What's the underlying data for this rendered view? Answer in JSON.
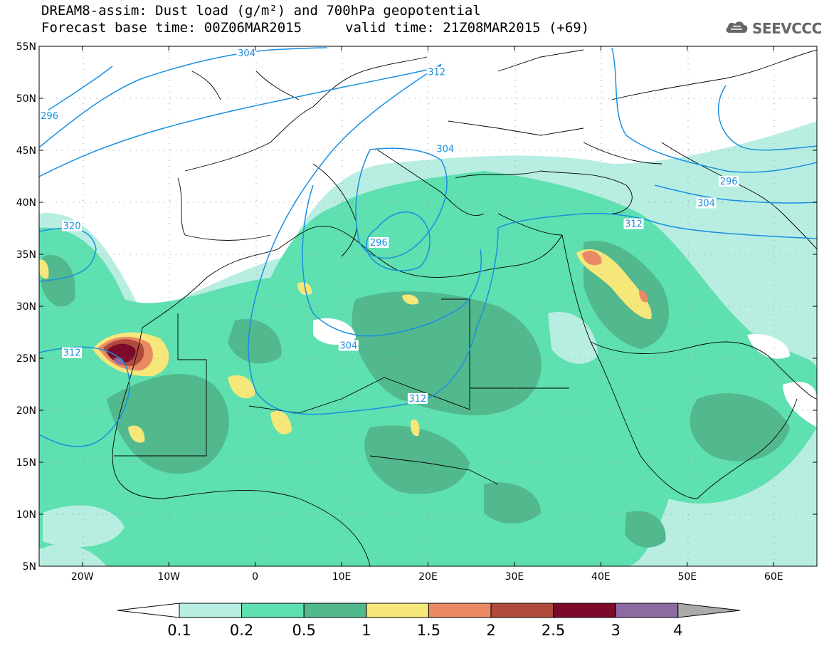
{
  "title": {
    "line1": "DREAM8-assim: Dust load (g/m²) and 700hPa geopotential",
    "line2_left": "Forecast base time: 00Z06MAR2015",
    "line2_right": "valid time: 21Z08MAR2015 (+69)"
  },
  "logo": {
    "text": "SEEVCCC",
    "icon": "cloud-icon"
  },
  "map": {
    "lat_labels": [
      "55N",
      "50N",
      "45N",
      "40N",
      "35N",
      "30N",
      "25N",
      "20N",
      "15N",
      "10N",
      "5N"
    ],
    "lon_labels": [
      "20W",
      "10W",
      "0",
      "10E",
      "20E",
      "30E",
      "40E",
      "50E",
      "60E"
    ],
    "lat_range": [
      5,
      55
    ],
    "lon_range": [
      -25,
      65
    ],
    "grid": "dotted",
    "contour_labels": [
      {
        "text": "304",
        "lon": -1,
        "lat": 54.3
      },
      {
        "text": "312",
        "lon": 21,
        "lat": 52.5
      },
      {
        "text": "296",
        "lon": -23.8,
        "lat": 48.3
      },
      {
        "text": "304",
        "lon": 22,
        "lat": 45.1
      },
      {
        "text": "296",
        "lon": 54.8,
        "lat": 42.0
      },
      {
        "text": "304",
        "lon": 52.2,
        "lat": 39.9
      },
      {
        "text": "312",
        "lon": 43.8,
        "lat": 37.9
      },
      {
        "text": "320",
        "lon": -21.2,
        "lat": 37.7
      },
      {
        "text": "296",
        "lon": 14.3,
        "lat": 36.1
      },
      {
        "text": "312",
        "lon": -21.2,
        "lat": 25.5
      },
      {
        "text": "304",
        "lon": 10.8,
        "lat": 26.2
      },
      {
        "text": "312",
        "lon": 18.8,
        "lat": 21.1
      }
    ]
  },
  "colorbar": {
    "labels": [
      "0.1",
      "0.2",
      "0.5",
      "1",
      "1.5",
      "2",
      "2.5",
      "3",
      "4"
    ],
    "colors": [
      "#b8eee2",
      "#5ee0b0",
      "#52b88e",
      "#f5e77a",
      "#ea8a64",
      "#b04a3c",
      "#7c0a2a",
      "#8e6aa2"
    ],
    "over_color": "#aaaaaa",
    "under_color": "#ffffff"
  }
}
